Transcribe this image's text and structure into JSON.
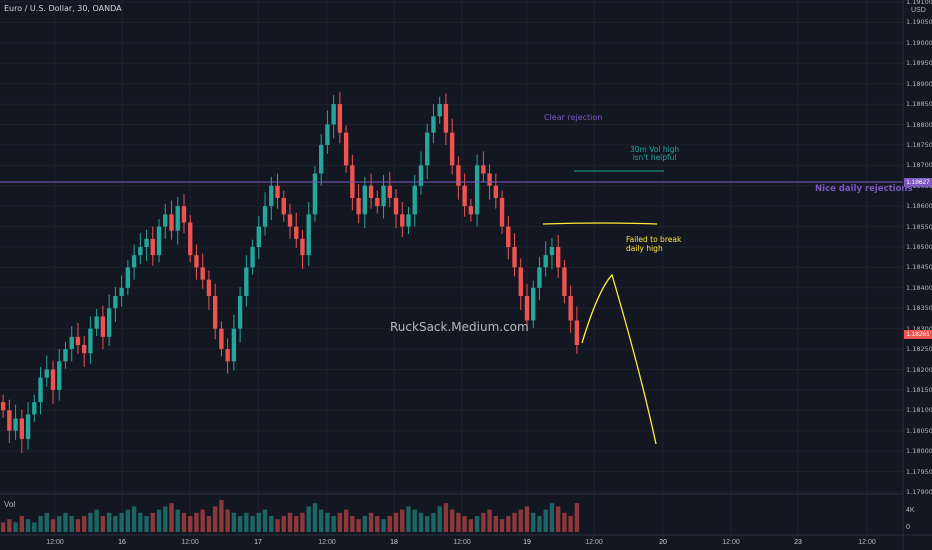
{
  "header": {
    "title": "Euro / U.S. Dollar, 30, OANDA",
    "currency": "USD"
  },
  "volume_pane": {
    "label": "Vol",
    "ticks": [
      "4K",
      "0"
    ]
  },
  "price_axis": {
    "ticks": [
      "1.19100",
      "1.19050",
      "1.19000",
      "1.18950",
      "1.18900",
      "1.18850",
      "1.18800",
      "1.18750",
      "1.18700",
      "1.18650",
      "1.18600",
      "1.18550",
      "1.18500",
      "1.18450",
      "1.18400",
      "1.18350",
      "1.18300",
      "1.18250",
      "1.18200",
      "1.18150",
      "1.18100",
      "1.18050",
      "1.18000",
      "1.17950",
      "1.17900"
    ],
    "current_price_label": "1.18261",
    "horizontal_level_label": "1.18627"
  },
  "time_axis": {
    "ticks": [
      {
        "label": "12:00",
        "bold": false
      },
      {
        "label": "16",
        "bold": true
      },
      {
        "label": "12:00",
        "bold": false
      },
      {
        "label": "17",
        "bold": true
      },
      {
        "label": "12:00",
        "bold": false
      },
      {
        "label": "18",
        "bold": true
      },
      {
        "label": "12:00",
        "bold": false
      },
      {
        "label": "19",
        "bold": true
      },
      {
        "label": "12:00",
        "bold": false
      },
      {
        "label": "20",
        "bold": true
      },
      {
        "label": "12:00",
        "bold": false
      },
      {
        "label": "23",
        "bold": true
      },
      {
        "label": "12:00",
        "bold": false
      }
    ]
  },
  "annotations": {
    "clear_rejection": "Clear rejection",
    "vol_high_line1": "30m Vol high",
    "vol_high_line2": "isn't helpful",
    "nice_daily": "Nice daily rejections",
    "failed_line1": "Failed to break",
    "failed_line2": "daily high",
    "watermark": "RuckSack.Medium.com"
  },
  "colors": {
    "up": "#26a69a",
    "down": "#ef5350",
    "drawing_purple": "#7e57c2",
    "drawing_yellow": "#ffeb3b",
    "background": "#131722"
  },
  "chart_data": {
    "type": "candlestick",
    "symbol": "EURUSD",
    "timeframe": "30",
    "y_range": [
      1.179,
      1.191
    ],
    "horizontal_level": 1.18627,
    "last_price": 1.18261,
    "ohlc_close_path": [
      1.181,
      1.1805,
      1.1808,
      1.1803,
      1.1809,
      1.1812,
      1.1818,
      1.182,
      1.1815,
      1.1822,
      1.1825,
      1.1828,
      1.1826,
      1.1824,
      1.183,
      1.1833,
      1.1828,
      1.1835,
      1.1838,
      1.184,
      1.1845,
      1.1848,
      1.185,
      1.1852,
      1.1848,
      1.1855,
      1.1858,
      1.1854,
      1.186,
      1.1856,
      1.1848,
      1.1845,
      1.1842,
      1.1838,
      1.183,
      1.1825,
      1.1822,
      1.183,
      1.1838,
      1.1845,
      1.185,
      1.1855,
      1.186,
      1.1865,
      1.1862,
      1.1858,
      1.1855,
      1.1852,
      1.1848,
      1.1858,
      1.1868,
      1.1875,
      1.188,
      1.1885,
      1.1878,
      1.187,
      1.1862,
      1.1858,
      1.1865,
      1.1862,
      1.186,
      1.1865,
      1.1862,
      1.1858,
      1.1855,
      1.1858,
      1.1865,
      1.187,
      1.1878,
      1.1882,
      1.1885,
      1.1878,
      1.187,
      1.1865,
      1.186,
      1.1858,
      1.187,
      1.1868,
      1.1865,
      1.1862,
      1.1855,
      1.185,
      1.1845,
      1.1838,
      1.1832,
      1.184,
      1.1845,
      1.1848,
      1.185,
      1.1845,
      1.1838,
      1.1832,
      1.1826
    ],
    "volume_relative": [
      0.3,
      0.4,
      0.3,
      0.5,
      0.4,
      0.3,
      0.5,
      0.6,
      0.4,
      0.5,
      0.6,
      0.5,
      0.4,
      0.5,
      0.6,
      0.7,
      0.5,
      0.6,
      0.5,
      0.6,
      0.7,
      0.8,
      0.6,
      0.5,
      0.6,
      0.7,
      0.8,
      0.9,
      0.7,
      0.6,
      0.5,
      0.6,
      0.7,
      0.5,
      0.8,
      1.0,
      0.7,
      0.6,
      0.5,
      0.6,
      0.5,
      0.6,
      0.7,
      0.5,
      0.4,
      0.5,
      0.6,
      0.5,
      0.6,
      0.8,
      0.9,
      0.7,
      0.6,
      0.5,
      0.6,
      0.7,
      0.5,
      0.4,
      0.5,
      0.6,
      0.5,
      0.4,
      0.5,
      0.6,
      0.7,
      0.8,
      0.7,
      0.6,
      0.5,
      0.6,
      0.8,
      0.9,
      0.7,
      0.6,
      0.5,
      0.4,
      0.5,
      0.6,
      0.7,
      0.5,
      0.4,
      0.5,
      0.6,
      0.7,
      0.8,
      0.6,
      0.5,
      0.7,
      0.9,
      0.8,
      0.6,
      0.5,
      0.9
    ]
  }
}
